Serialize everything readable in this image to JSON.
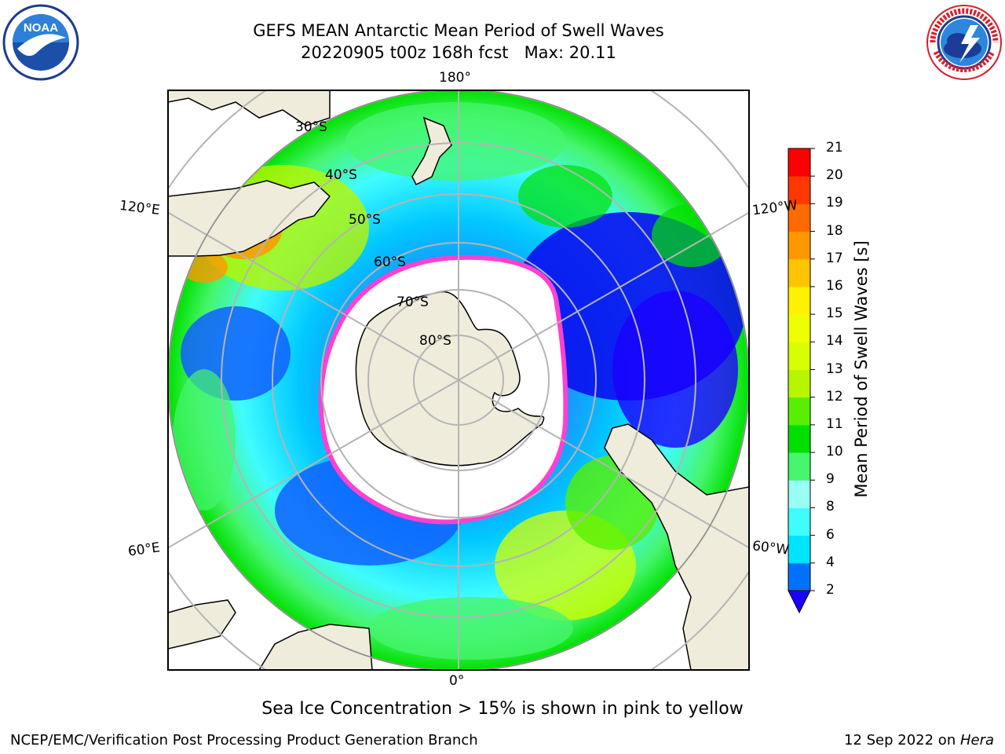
{
  "header": {
    "title_line1": "GEFS MEAN Antarctic Mean Period of Swell Waves",
    "title_line2": "20220905 t00z 168h fcst   Max: 20.11"
  },
  "map": {
    "projection": "south-polar-stereographic",
    "longitude_labels": {
      "top": "180°",
      "bottom": "0°",
      "left_upper": "120°E",
      "left_lower": "60°E",
      "right_upper": "120°W",
      "right_lower": "60°W"
    },
    "latitude_labels": [
      "30°S",
      "40°S",
      "50°S",
      "60°S",
      "70°S",
      "80°S"
    ],
    "land_color": "#efecdc",
    "ocean_no_data_color": "#ffffff"
  },
  "colorbar": {
    "label": "Mean Period of Swell Waves [s]",
    "ticks": [
      "2",
      "4",
      "6",
      "8",
      "9",
      "10",
      "11",
      "12",
      "13",
      "14",
      "15",
      "16",
      "17",
      "18",
      "19",
      "20",
      "21"
    ],
    "colors": [
      "#0072ff",
      "#00e4ff",
      "#40fcff",
      "#98fff6",
      "#46f56e",
      "#00e000",
      "#58f000",
      "#b8f500",
      "#d8ff00",
      "#f0ff00",
      "#fff200",
      "#ffc400",
      "#ff9800",
      "#ff6a00",
      "#ff3800",
      "#ff0000"
    ],
    "extend_color": "#1a00ff"
  },
  "legend_note": "Sea Ice Concentration > 15% is shown in pink to yellow",
  "footer": {
    "credit": "NCEP/EMC/Verification Post Processing Product Generation Branch",
    "date_prefix": "12 Sep 2022 on ",
    "machine": "Hera"
  },
  "logos": {
    "left": "NOAA",
    "right": "NATIONAL WEATHER SERVICE"
  }
}
